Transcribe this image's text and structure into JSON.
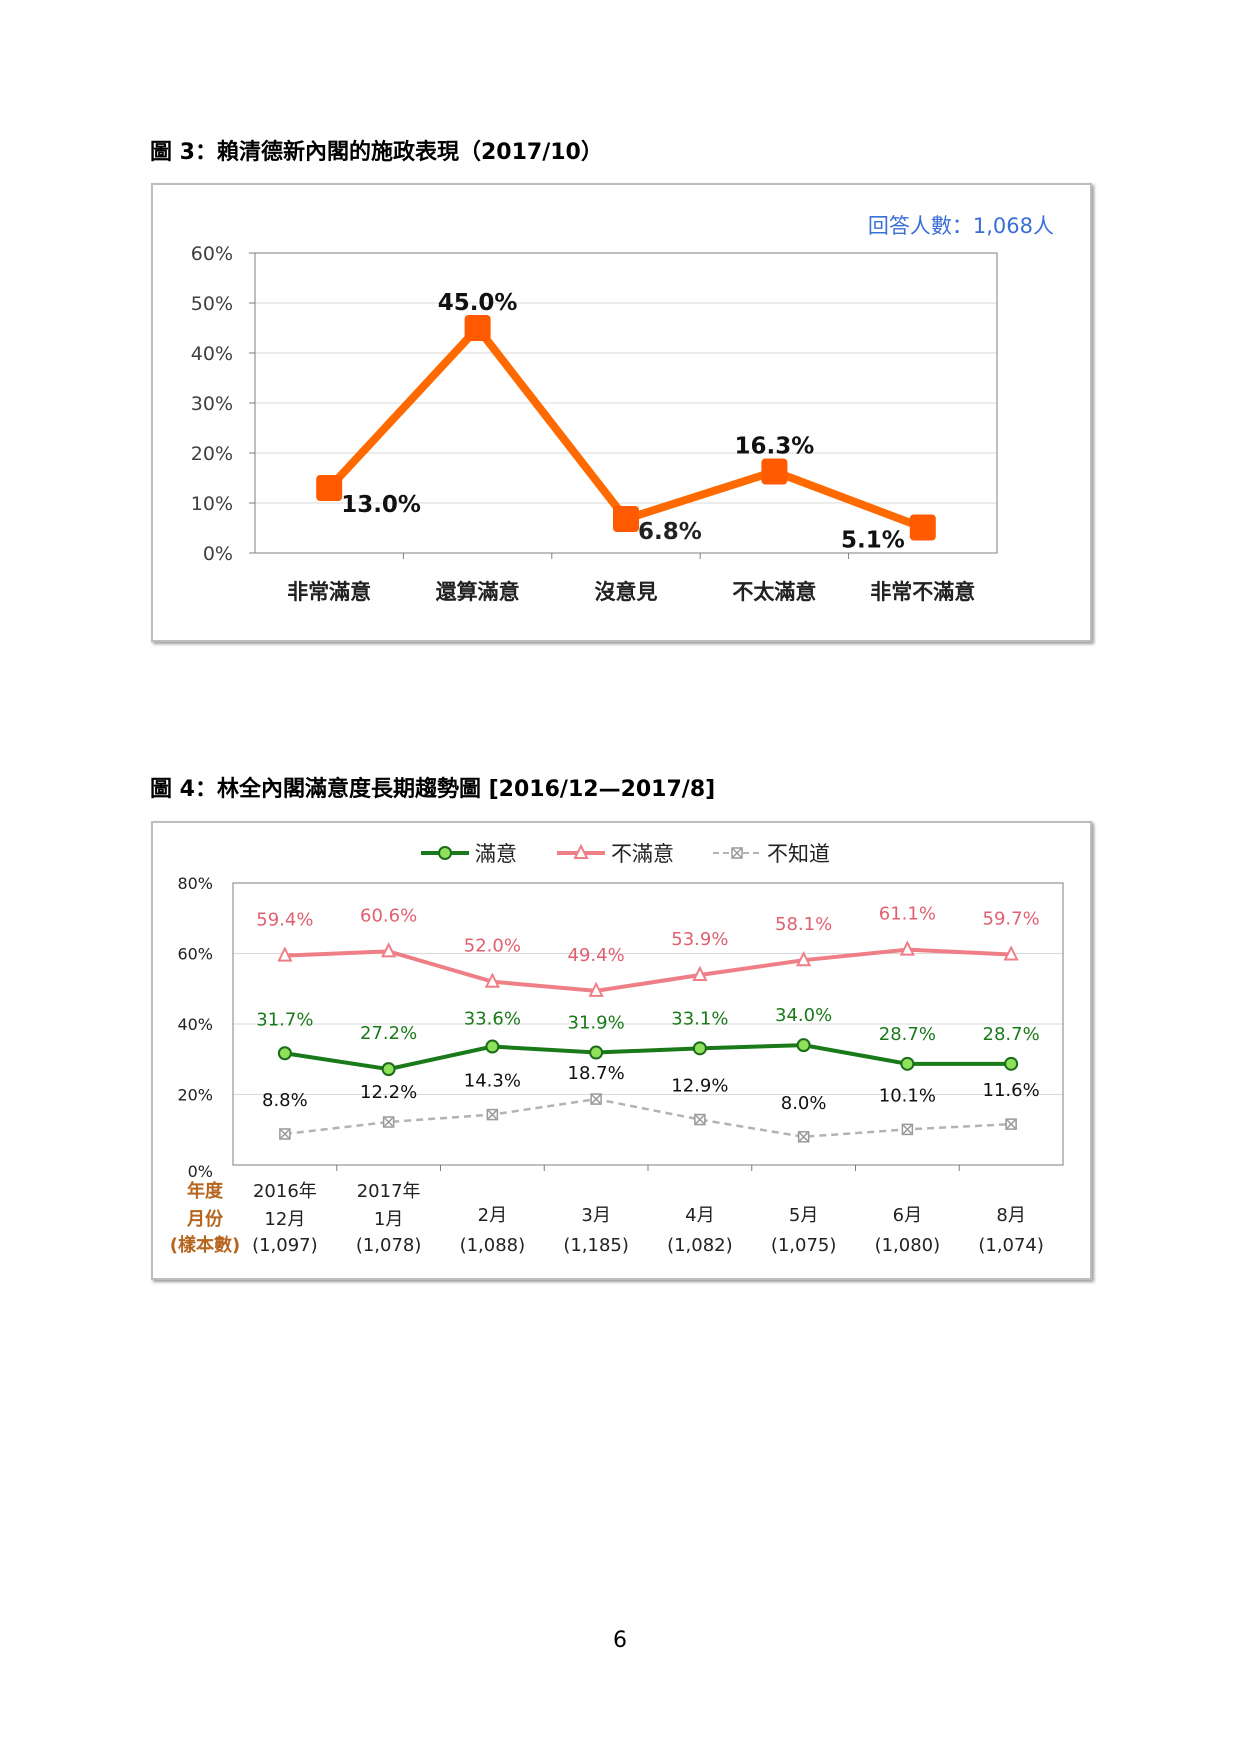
{
  "page_number": "6",
  "figures": [
    {
      "title": "圖 3：賴清德新內閣的施政表現（2017/10）"
    },
    {
      "title": "圖 4：林全內閣滿意度長期趨勢圖  [2016/12—2017/8]"
    }
  ],
  "chart_data": [
    {
      "type": "line",
      "title": "圖 3：賴清德新內閣的施政表現（2017/10）",
      "annotation": "回答人數：1,068人",
      "categories": [
        "非常滿意",
        "還算滿意",
        "沒意見",
        "不太滿意",
        "非常不滿意"
      ],
      "values": [
        13.0,
        45.0,
        6.8,
        16.3,
        5.1
      ],
      "value_labels": [
        "13.0%",
        "45.0%",
        "6.8%",
        "16.3%",
        "5.1%"
      ],
      "yticks": [
        "0%",
        "10%",
        "20%",
        "30%",
        "40%",
        "50%",
        "60%"
      ],
      "ylim": [
        0,
        60
      ],
      "grid": true,
      "colors": {
        "line": "#ff6a00",
        "marker": "#ff5a00",
        "annotation": "#3a6fd8"
      }
    },
    {
      "type": "line",
      "title": "圖 4：林全內閣滿意度長期趨勢圖  [2016/12—2017/8]",
      "legend_position": "top",
      "row_labels": [
        "年度",
        "月份",
        "(樣本數)"
      ],
      "year_labels": [
        "2016年",
        "2017年",
        "",
        "",
        "",
        "",
        "",
        ""
      ],
      "month_labels": [
        "12月",
        "1月",
        "2月",
        "3月",
        "4月",
        "5月",
        "6月",
        "8月"
      ],
      "sample_labels": [
        "(1,097)",
        "(1,078)",
        "(1,088)",
        "(1,185)",
        "(1,082)",
        "(1,075)",
        "(1,080)",
        "(1,074)"
      ],
      "yticks": [
        "0%",
        "20%",
        "40%",
        "60%",
        "80%"
      ],
      "ylim": [
        0,
        80
      ],
      "grid": true,
      "series": [
        {
          "name": "滿意",
          "marker": "circle",
          "color": "#1a7a1a",
          "values": [
            31.7,
            27.2,
            33.6,
            31.9,
            33.1,
            34.0,
            28.7,
            28.7
          ],
          "labels": [
            "31.7%",
            "27.2%",
            "33.6%",
            "31.9%",
            "33.1%",
            "34.0%",
            "28.7%",
            "28.7%"
          ]
        },
        {
          "name": "不滿意",
          "marker": "triangle",
          "color": "#ee7f86",
          "values": [
            59.4,
            60.6,
            52.0,
            49.4,
            53.9,
            58.1,
            61.1,
            59.7
          ],
          "labels": [
            "59.4%",
            "60.6%",
            "52.0%",
            "49.4%",
            "53.9%",
            "58.1%",
            "61.1%",
            "59.7%"
          ]
        },
        {
          "name": "不知道",
          "marker": "x-box",
          "color": "#b3b3b3",
          "dashed": true,
          "values": [
            8.8,
            12.2,
            14.3,
            18.7,
            12.9,
            8.0,
            10.1,
            11.6
          ],
          "labels": [
            "8.8%",
            "12.2%",
            "14.3%",
            "18.7%",
            "12.9%",
            "8.0%",
            "10.1%",
            "11.6%"
          ]
        }
      ]
    }
  ]
}
